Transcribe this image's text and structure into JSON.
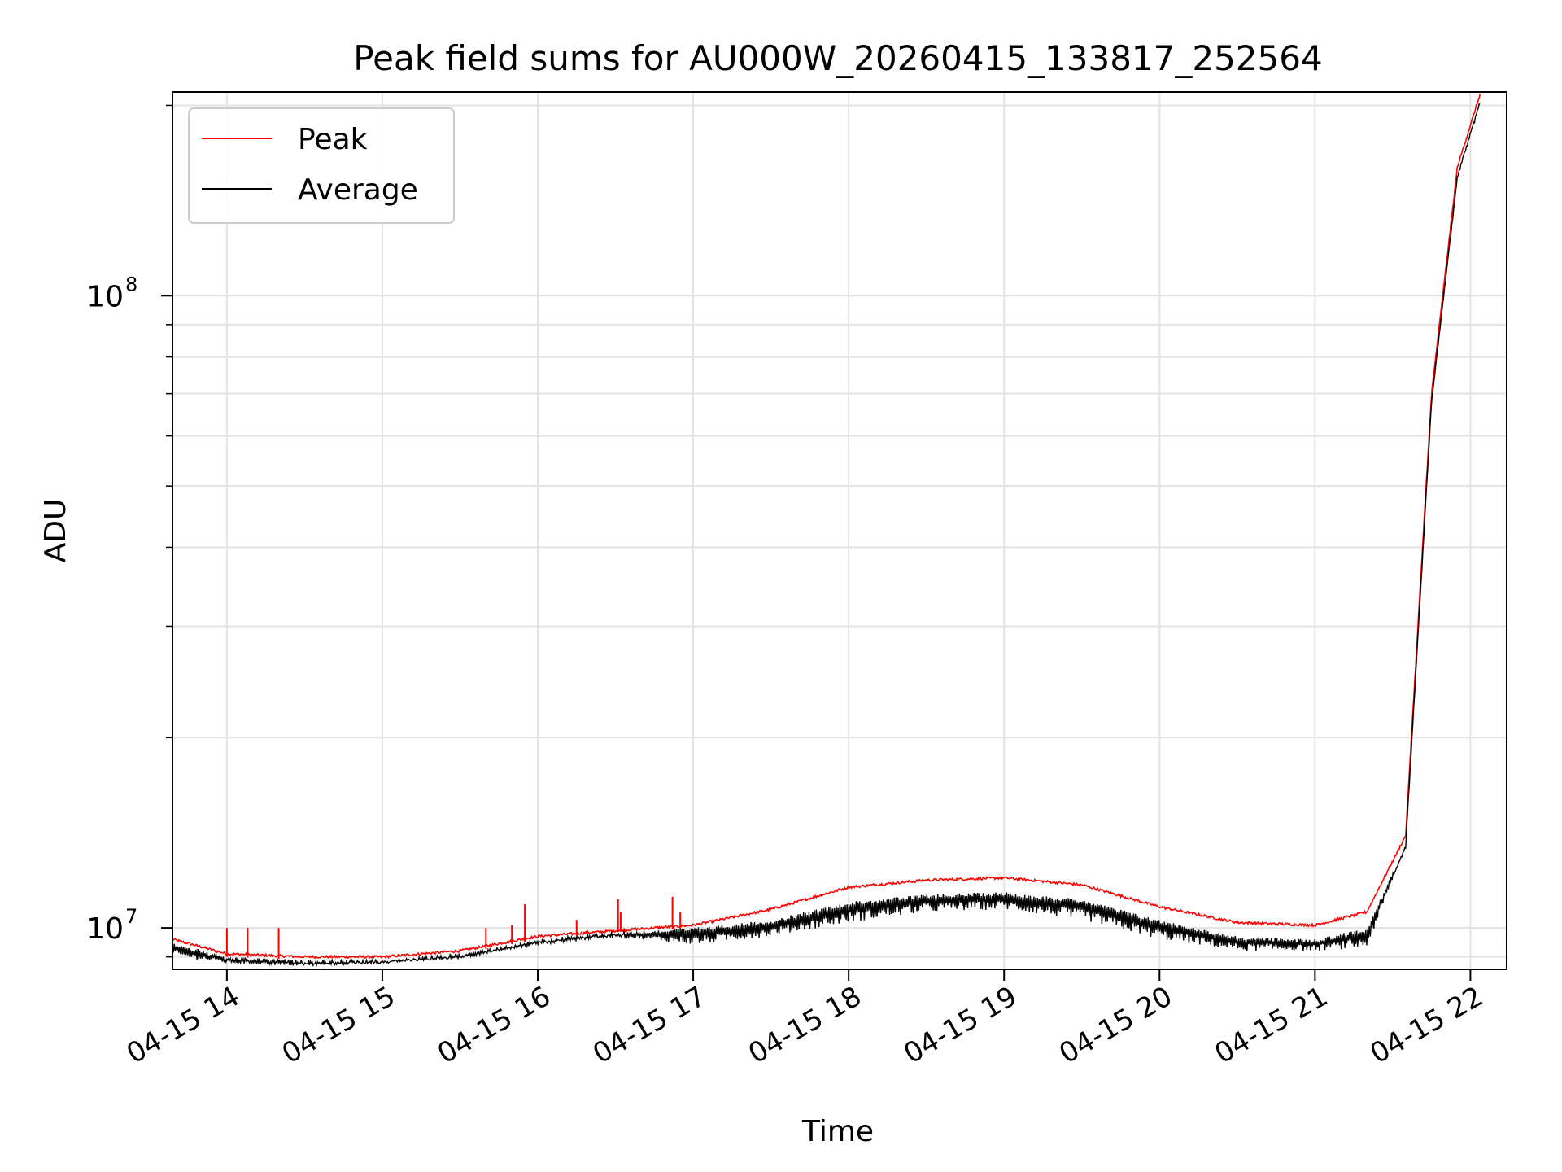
{
  "chart_data": {
    "type": "line",
    "title": "Peak field sums for AU000W_20260415_133817_252564",
    "xlabel": "Time",
    "ylabel": "ADU",
    "yscale": "log",
    "ylim": [
      8600000,
      210000000
    ],
    "xlim": [
      "2026-04-15 13:39",
      "2026-04-15 22:14"
    ],
    "grid": true,
    "legend": {
      "position": "upper-left",
      "handle_label_pairs": true
    },
    "x_ticks": [
      {
        "time": "2026-04-15 14:00",
        "label": "04-15 14"
      },
      {
        "time": "2026-04-15 15:00",
        "label": "04-15 15"
      },
      {
        "time": "2026-04-15 16:00",
        "label": "04-15 16"
      },
      {
        "time": "2026-04-15 17:00",
        "label": "04-15 17"
      },
      {
        "time": "2026-04-15 18:00",
        "label": "04-15 18"
      },
      {
        "time": "2026-04-15 19:00",
        "label": "04-15 19"
      },
      {
        "time": "2026-04-15 20:00",
        "label": "04-15 20"
      },
      {
        "time": "2026-04-15 21:00",
        "label": "04-15 21"
      },
      {
        "time": "2026-04-15 22:00",
        "label": "04-15 22"
      }
    ],
    "y_major_ticks": [
      {
        "value": 10000000,
        "base": "10",
        "exp": "7"
      },
      {
        "value": 100000000,
        "base": "10",
        "exp": "8"
      }
    ],
    "y_minor_ticks": [
      9000000,
      20000000,
      30000000,
      40000000,
      50000000,
      60000000,
      70000000,
      80000000,
      90000000,
      200000000
    ],
    "series": [
      {
        "name": "Peak",
        "color": "#ff0000",
        "x": [
          "2026-04-15 13:39",
          "2026-04-15 14:00",
          "2026-04-15 14:30",
          "2026-04-15 15:00",
          "2026-04-15 15:30",
          "2026-04-15 16:00",
          "2026-04-15 16:30",
          "2026-04-15 17:00",
          "2026-04-15 17:30",
          "2026-04-15 18:00",
          "2026-04-15 18:30",
          "2026-04-15 19:00",
          "2026-04-15 19:30",
          "2026-04-15 20:00",
          "2026-04-15 20:30",
          "2026-04-15 21:00",
          "2026-04-15 21:20",
          "2026-04-15 21:35",
          "2026-04-15 21:45",
          "2026-04-15 21:55",
          "2026-04-15 22:04"
        ],
        "y": [
          9600000,
          9100000,
          9000000,
          9000000,
          9200000,
          9700000,
          9900000,
          10100000,
          10700000,
          11600000,
          11900000,
          12000000,
          11700000,
          10800000,
          10200000,
          10100000,
          10600000,
          14000000,
          70000000,
          160000000,
          210000000
        ],
        "spikes": [
          {
            "time": "2026-04-15 14:00",
            "value": 10000000
          },
          {
            "time": "2026-04-15 14:08",
            "value": 10000000
          },
          {
            "time": "2026-04-15 14:20",
            "value": 10000000
          },
          {
            "time": "2026-04-15 15:40",
            "value": 10000000
          },
          {
            "time": "2026-04-15 15:50",
            "value": 10100000
          },
          {
            "time": "2026-04-15 15:55",
            "value": 10900000
          },
          {
            "time": "2026-04-15 16:15",
            "value": 10300000
          },
          {
            "time": "2026-04-15 16:31",
            "value": 11100000
          },
          {
            "time": "2026-04-15 16:32",
            "value": 10600000
          },
          {
            "time": "2026-04-15 16:52",
            "value": 11200000
          },
          {
            "time": "2026-04-15 16:55",
            "value": 10600000
          }
        ]
      },
      {
        "name": "Average",
        "color": "#000000",
        "x": [
          "2026-04-15 13:39",
          "2026-04-15 14:00",
          "2026-04-15 14:30",
          "2026-04-15 15:00",
          "2026-04-15 15:30",
          "2026-04-15 16:00",
          "2026-04-15 16:30",
          "2026-04-15 17:00",
          "2026-04-15 17:30",
          "2026-04-15 18:00",
          "2026-04-15 18:30",
          "2026-04-15 19:00",
          "2026-04-15 19:30",
          "2026-04-15 20:00",
          "2026-04-15 20:30",
          "2026-04-15 21:00",
          "2026-04-15 21:20",
          "2026-04-15 21:35",
          "2026-04-15 21:45",
          "2026-04-15 21:55",
          "2026-04-15 22:04"
        ],
        "y": [
          9500000,
          9000000,
          8900000,
          8900000,
          9100000,
          9600000,
          9850000,
          10000000,
          10300000,
          11000000,
          11300000,
          11400000,
          11100000,
          10300000,
          9700000,
          9600000,
          10000000,
          13500000,
          68000000,
          155000000,
          205000000
        ],
        "noise_floor": [
          9000000,
          8800000,
          8700000,
          8800000,
          8950000,
          9400000,
          9700000,
          9400000,
          9700000,
          10200000,
          10600000,
          10700000,
          10300000,
          9600000,
          9200000,
          9200000,
          9300000,
          13500000,
          68000000,
          155000000,
          205000000
        ]
      }
    ]
  }
}
